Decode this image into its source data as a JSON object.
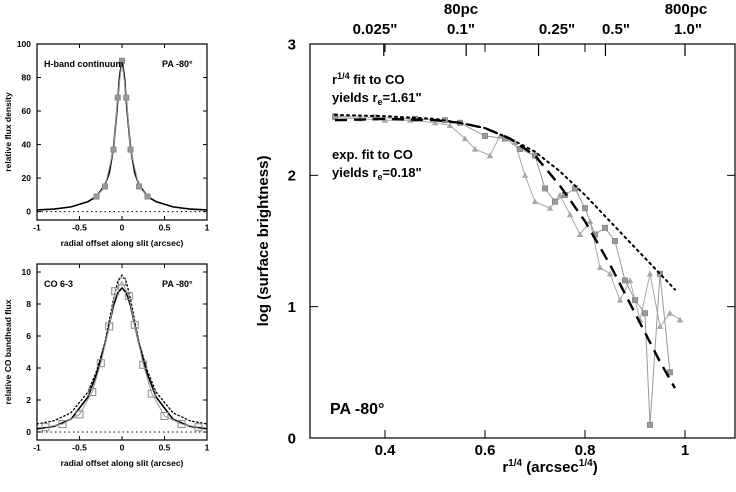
{
  "chart_data": [
    {
      "type": "line",
      "panel": "top-left",
      "title_left": "H-band continuum",
      "annotation_right": "PA -80°",
      "xlabel": "radial offset along slit (arcsec)",
      "ylabel": "relative flux density",
      "xlim": [
        -1,
        1
      ],
      "ylim": [
        -5,
        100
      ],
      "xticks": [
        "-1",
        "-0.5",
        "0",
        "0.5",
        "1"
      ],
      "yticks": [
        "0",
        "20",
        "40",
        "60",
        "80",
        "100"
      ],
      "series": [
        {
          "style": "model-solid",
          "x": [
            -1.0,
            -0.8,
            -0.6,
            -0.4,
            -0.3,
            -0.2,
            -0.15,
            -0.1,
            -0.06,
            -0.03,
            0.0,
            0.03,
            0.06,
            0.1,
            0.15,
            0.2,
            0.3,
            0.4,
            0.6,
            0.8,
            1.0
          ],
          "y": [
            1.0,
            1.5,
            2.8,
            6,
            9,
            16,
            23,
            38,
            60,
            80,
            91,
            80,
            60,
            38,
            23,
            16,
            9,
            6,
            2.8,
            1.5,
            1.0
          ]
        },
        {
          "style": "data-grey-squares",
          "x": [
            -0.3,
            -0.2,
            -0.1,
            -0.05,
            0.0,
            0.05,
            0.1,
            0.2,
            0.3
          ],
          "y": [
            9,
            15,
            37,
            68,
            90,
            68,
            37,
            15,
            9
          ]
        }
      ]
    },
    {
      "type": "line",
      "panel": "bottom-left",
      "title_left": "CO 6-3",
      "annotation_right": "PA -80°",
      "xlabel": "radial offset along slit (arcsec)",
      "ylabel": "relative CO bandhead flux",
      "xlim": [
        -1,
        1
      ],
      "ylim": [
        -0.5,
        10.5
      ],
      "xticks": [
        "-1",
        "-0.5",
        "0",
        "0.5",
        "1"
      ],
      "yticks": [
        "0",
        "2",
        "4",
        "6",
        "8",
        "10"
      ],
      "series": [
        {
          "style": "model-solid",
          "x": [
            -1.0,
            -0.8,
            -0.6,
            -0.4,
            -0.3,
            -0.2,
            -0.1,
            -0.05,
            0.0,
            0.05,
            0.1,
            0.2,
            0.3,
            0.4,
            0.6,
            0.8,
            1.0
          ],
          "y": [
            0.2,
            0.35,
            0.8,
            2.2,
            3.6,
            5.5,
            7.9,
            8.7,
            9.0,
            8.7,
            7.9,
            5.5,
            3.6,
            2.2,
            0.8,
            0.35,
            0.2
          ]
        },
        {
          "style": "model-dotted",
          "x": [
            -1.0,
            -0.8,
            -0.6,
            -0.4,
            -0.3,
            -0.2,
            -0.1,
            -0.05,
            0.0,
            0.05,
            0.1,
            0.2,
            0.3,
            0.4,
            0.6,
            0.8,
            1.0
          ],
          "y": [
            0.5,
            0.7,
            1.2,
            2.5,
            3.8,
            5.6,
            8.3,
            9.4,
            9.8,
            9.4,
            8.3,
            5.6,
            3.8,
            2.5,
            1.2,
            0.7,
            0.5
          ]
        },
        {
          "style": "data-grey-squares",
          "x": [
            -0.9,
            -0.7,
            -0.5,
            -0.35,
            -0.25,
            -0.15,
            -0.08,
            0.0,
            0.08,
            0.15,
            0.25,
            0.35,
            0.5,
            0.7,
            0.9
          ],
          "y": [
            0.3,
            0.5,
            1.1,
            2.5,
            4.3,
            6.6,
            8.8,
            9.4,
            8.5,
            6.7,
            4.2,
            2.4,
            1.0,
            0.5,
            0.3
          ]
        }
      ]
    },
    {
      "type": "scatter",
      "panel": "right",
      "xlabel": "r^{1/4} (arcsec^{1/4})",
      "ylabel": "log (surface brightness)",
      "xlim": [
        0.25,
        1.1
      ],
      "ylim": [
        0,
        3
      ],
      "xticks": [
        "0.4",
        "0.6",
        "0.8",
        "1"
      ],
      "yticks": [
        "0",
        "1",
        "2",
        "3"
      ],
      "top_axis_arcsec": [
        "0.025\"",
        "0.1\"",
        "0.25\"",
        "0.5\"",
        "1.0\""
      ],
      "top_axis_pc": [
        "80pc",
        "800pc"
      ],
      "annotation_r14": "r",
      "annotation_r14_sup": "1/4",
      "annotation_r14_rest": " fit to CO",
      "annotation_r14_line2": "yields r",
      "annotation_r14_sub": "e",
      "annotation_r14_value": "=1.61\"",
      "annotation_exp": "exp. fit to CO",
      "annotation_exp_line2": "yields r",
      "annotation_exp_sub": "e",
      "annotation_exp_value": "=0.18\"",
      "annotation_pa": "PA -80°",
      "series": [
        {
          "style": "data-grey-triangles",
          "x": [
            0.3,
            0.35,
            0.4,
            0.45,
            0.5,
            0.53,
            0.56,
            0.58,
            0.61,
            0.63,
            0.66,
            0.68,
            0.7,
            0.73,
            0.75,
            0.77,
            0.79,
            0.81,
            0.83,
            0.85,
            0.87,
            0.89,
            0.91,
            0.93,
            0.95,
            0.97,
            0.99
          ],
          "y": [
            2.44,
            2.43,
            2.42,
            2.42,
            2.4,
            2.38,
            2.28,
            2.2,
            2.15,
            2.3,
            2.25,
            2.0,
            1.8,
            1.75,
            1.85,
            1.7,
            1.55,
            1.65,
            1.3,
            1.25,
            1.05,
            1.2,
            0.9,
            1.25,
            0.85,
            0.95,
            0.9
          ]
        },
        {
          "style": "data-grey-squares",
          "x": [
            0.3,
            0.38,
            0.46,
            0.52,
            0.55,
            0.6,
            0.64,
            0.67,
            0.7,
            0.72,
            0.74,
            0.76,
            0.78,
            0.8,
            0.82,
            0.84,
            0.86,
            0.88,
            0.9,
            0.92,
            0.93,
            0.95,
            0.97
          ],
          "y": [
            2.45,
            2.44,
            2.43,
            2.42,
            2.4,
            2.3,
            2.28,
            2.2,
            2.15,
            1.9,
            1.8,
            1.85,
            1.9,
            1.75,
            1.55,
            1.6,
            1.5,
            1.2,
            1.05,
            0.95,
            0.1,
            1.25,
            0.5
          ]
        },
        {
          "style": "model-dashed",
          "x": [
            0.3,
            0.4,
            0.5,
            0.55,
            0.6,
            0.65,
            0.7,
            0.75,
            0.8,
            0.85,
            0.9,
            0.95,
            0.98
          ],
          "y": [
            2.42,
            2.43,
            2.42,
            2.4,
            2.36,
            2.28,
            2.15,
            1.92,
            1.65,
            1.32,
            0.95,
            0.58,
            0.38
          ]
        },
        {
          "style": "model-dotted",
          "x": [
            0.3,
            0.4,
            0.5,
            0.55,
            0.6,
            0.65,
            0.7,
            0.75,
            0.8,
            0.85,
            0.9,
            0.95,
            0.98
          ],
          "y": [
            2.46,
            2.45,
            2.43,
            2.4,
            2.36,
            2.28,
            2.18,
            2.03,
            1.85,
            1.65,
            1.45,
            1.25,
            1.13
          ]
        }
      ]
    }
  ]
}
